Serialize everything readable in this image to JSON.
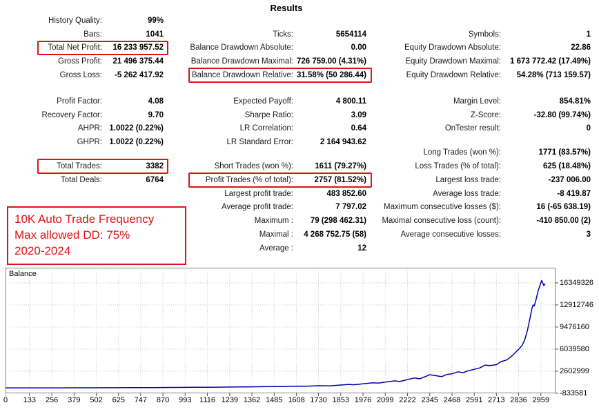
{
  "title": "Results",
  "accent_red": "#dd1414",
  "stats": {
    "columns": [
      {
        "name": "left",
        "blocks": [
          [
            {
              "l": "History Quality:",
              "v": "99%"
            },
            {
              "l": "Bars:",
              "v": "1041"
            },
            {
              "l": "Total Net Profit:",
              "v": "16 233 957.52",
              "hl": true
            },
            {
              "l": "Gross Profit:",
              "v": "21 496 375.44"
            },
            {
              "l": "Gross Loss:",
              "v": "-5 262 417.92"
            }
          ],
          [
            {
              "l": "Profit Factor:",
              "v": "4.08"
            },
            {
              "l": "Recovery Factor:",
              "v": "9.70"
            },
            {
              "l": "AHPR:",
              "v": "1.0022 (0.22%)"
            },
            {
              "l": "GHPR:",
              "v": "1.0022 (0.22%)"
            }
          ],
          [
            {
              "l": "Total Trades:",
              "v": "3382",
              "hl": true
            },
            {
              "l": "Total Deals:",
              "v": "6764"
            }
          ]
        ]
      },
      {
        "name": "middle",
        "blocks": [
          [
            {
              "l": "Ticks:",
              "v": "5654114"
            },
            {
              "l": "Balance Drawdown Absolute:",
              "v": "0.00"
            },
            {
              "l": "Balance Drawdown Maximal:",
              "v": "726 759.00 (4.31%)"
            },
            {
              "l": "Balance Drawdown Relative:",
              "v": "31.58% (50 286.44)",
              "hl": true
            }
          ],
          [
            {
              "l": "Expected Payoff:",
              "v": "4 800.11"
            },
            {
              "l": "Sharpe Ratio:",
              "v": "3.09"
            },
            {
              "l": "LR Correlation:",
              "v": "0.64"
            },
            {
              "l": "LR Standard Error:",
              "v": "2 164 943.62"
            }
          ],
          [
            {
              "l": "Short Trades (won %):",
              "v": "1611 (79.27%)"
            },
            {
              "l": "Profit Trades (% of total):",
              "v": "2757 (81.52%)",
              "hl": true
            },
            {
              "l": "Largest profit trade:",
              "v": "483 852.60"
            },
            {
              "l": "Average profit trade:",
              "v": "7 797.02"
            },
            {
              "l": "Maximum :",
              "v": "79 (298 462.31)"
            },
            {
              "l": "Maximal :",
              "v": "4 268 752.75 (58)"
            },
            {
              "l": "Average :",
              "v": "12"
            }
          ]
        ]
      },
      {
        "name": "right",
        "blocks": [
          [
            {
              "l": "Symbols:",
              "v": "1"
            },
            {
              "l": "Equity Drawdown Absolute:",
              "v": "22.86"
            },
            {
              "l": "Equity Drawdown Maximal:",
              "v": "1 673 772.42 (17.49%)"
            },
            {
              "l": "Equity Drawdown Relative:",
              "v": "54.28% (713 159.57)"
            }
          ],
          [
            {
              "l": "Margin Level:",
              "v": "854.81%"
            },
            {
              "l": "Z-Score:",
              "v": "-32.80 (99.74%)"
            },
            {
              "l": "OnTester result:",
              "v": "0"
            }
          ],
          [
            {
              "l": "Long Trades (won %):",
              "v": "1771 (83.57%)"
            },
            {
              "l": "Loss Trades (% of total):",
              "v": "625 (18.48%)"
            },
            {
              "l": "Largest loss trade:",
              "v": "-237 006.00"
            },
            {
              "l": "Average loss trade:",
              "v": "-8 419.87"
            },
            {
              "l": "Maximum consecutive losses ($):",
              "v": "16 (-65 638.19)"
            },
            {
              "l": "Maximal consecutive loss (count):",
              "v": "-410 850.00 (2)"
            },
            {
              "l": "Average consecutive losses:",
              "v": "3"
            }
          ]
        ]
      }
    ]
  },
  "annotation": {
    "lines": [
      "10K Auto Trade Frequency",
      "Max allowed DD: 75%",
      "2020-2024"
    ]
  },
  "chart_data": {
    "type": "line",
    "series_label": "Balance",
    "line_color": "#0000a8",
    "grid": true,
    "xlim": [
      0,
      3040
    ],
    "ylim": [
      -833581,
      18700000
    ],
    "x_ticks": [
      0,
      133,
      256,
      379,
      502,
      625,
      747,
      870,
      993,
      1116,
      1239,
      1362,
      1485,
      1608,
      1730,
      1853,
      1976,
      2099,
      2222,
      2345,
      2468,
      2591,
      2713,
      2836,
      2959
    ],
    "y_ticks": [
      -833581,
      2602999,
      6039580,
      9476160,
      12912746,
      16349326
    ],
    "points": [
      [
        0,
        10000
      ],
      [
        60,
        12000
      ],
      [
        133,
        14000
      ],
      [
        200,
        16000
      ],
      [
        256,
        18000
      ],
      [
        320,
        17000
      ],
      [
        379,
        22000
      ],
      [
        440,
        26000
      ],
      [
        502,
        30000
      ],
      [
        560,
        34000
      ],
      [
        625,
        40000
      ],
      [
        690,
        46000
      ],
      [
        747,
        52000
      ],
      [
        810,
        60000
      ],
      [
        870,
        68000
      ],
      [
        930,
        76000
      ],
      [
        993,
        86000
      ],
      [
        1050,
        96000
      ],
      [
        1116,
        110000
      ],
      [
        1180,
        125000
      ],
      [
        1239,
        142000
      ],
      [
        1300,
        160000
      ],
      [
        1330,
        150000
      ],
      [
        1362,
        170000
      ],
      [
        1420,
        195000
      ],
      [
        1485,
        220000
      ],
      [
        1530,
        205000
      ],
      [
        1608,
        280000
      ],
      [
        1660,
        260000
      ],
      [
        1730,
        350000
      ],
      [
        1790,
        320000
      ],
      [
        1853,
        450000
      ],
      [
        1900,
        550000
      ],
      [
        1925,
        500000
      ],
      [
        1976,
        650000
      ],
      [
        2030,
        800000
      ],
      [
        2060,
        750000
      ],
      [
        2099,
        900000
      ],
      [
        2150,
        1100000
      ],
      [
        2180,
        1000000
      ],
      [
        2222,
        1300000
      ],
      [
        2260,
        1550000
      ],
      [
        2290,
        1420000
      ],
      [
        2345,
        2050000
      ],
      [
        2380,
        1900000
      ],
      [
        2410,
        1750000
      ],
      [
        2440,
        2100000
      ],
      [
        2468,
        2200000
      ],
      [
        2500,
        2500000
      ],
      [
        2530,
        2380000
      ],
      [
        2560,
        2700000
      ],
      [
        2591,
        2900000
      ],
      [
        2620,
        3100000
      ],
      [
        2651,
        3550000
      ],
      [
        2680,
        3480000
      ],
      [
        2713,
        3620000
      ],
      [
        2740,
        4100000
      ],
      [
        2770,
        4350000
      ],
      [
        2800,
        5000000
      ],
      [
        2836,
        6000000
      ],
      [
        2855,
        6600000
      ],
      [
        2870,
        7500000
      ],
      [
        2885,
        9000000
      ],
      [
        2900,
        11000000
      ],
      [
        2910,
        12400000
      ],
      [
        2916,
        12900000
      ],
      [
        2922,
        12750000
      ],
      [
        2930,
        13500000
      ],
      [
        2945,
        15200000
      ],
      [
        2958,
        16300000
      ],
      [
        2964,
        16700000
      ],
      [
        2970,
        16300000
      ],
      [
        2976,
        15900000
      ],
      [
        2982,
        16240000
      ]
    ]
  }
}
